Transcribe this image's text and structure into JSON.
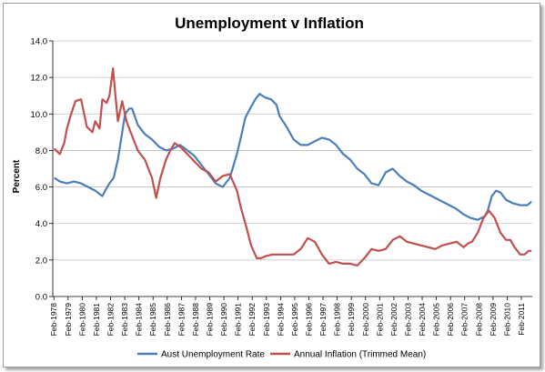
{
  "chart_data": {
    "type": "line",
    "title": "Unemployment v Inflation",
    "xlabel": "",
    "ylabel": "Percent",
    "ylim": [
      0,
      14
    ],
    "yticks": [
      "0.0",
      "2.0",
      "4.0",
      "6.0",
      "8.0",
      "10.0",
      "12.0",
      "14.0"
    ],
    "xlim": [
      1978.0,
      2011.85
    ],
    "x_tick_labels": [
      "Feb-1978",
      "Feb-1979",
      "Feb-1980",
      "Feb-1981",
      "Feb-1982",
      "Feb-1983",
      "Feb-1984",
      "Feb-1985",
      "Feb-1986",
      "Feb-1987",
      "Feb-1988",
      "Feb-1989",
      "Feb-1990",
      "Feb-1991",
      "Feb-1992",
      "Feb-1993",
      "Feb-1994",
      "Feb-1995",
      "Feb-1996",
      "Feb-1997",
      "Feb-1998",
      "Feb-1999",
      "Feb-2000",
      "Feb-2001",
      "Feb-2002",
      "Feb-2003",
      "Feb-2004",
      "Feb-2005",
      "Feb-2006",
      "Feb-2007",
      "Feb-2008",
      "Feb-2009",
      "Feb-2010",
      "Feb-2011"
    ],
    "grid": true,
    "legend": "bottom",
    "series": [
      {
        "name": "Aust Unemployment Rate",
        "color": "#4a7ebb",
        "x": [
          1978.1,
          1978.5,
          1979.0,
          1979.5,
          1980.0,
          1980.5,
          1981.0,
          1981.5,
          1981.7,
          1982.0,
          1982.3,
          1982.6,
          1982.9,
          1983.1,
          1983.4,
          1983.6,
          1984.0,
          1984.5,
          1985.0,
          1985.5,
          1986.0,
          1986.5,
          1987.0,
          1987.5,
          1988.0,
          1988.5,
          1989.0,
          1989.5,
          1990.0,
          1990.5,
          1991.0,
          1991.3,
          1991.6,
          1992.0,
          1992.3,
          1992.6,
          1993.0,
          1993.4,
          1993.8,
          1994.0,
          1994.5,
          1995.0,
          1995.5,
          1996.0,
          1996.5,
          1997.0,
          1997.5,
          1998.0,
          1998.5,
          1999.0,
          1999.5,
          2000.0,
          2000.5,
          2001.0,
          2001.5,
          2002.0,
          2002.5,
          2003.0,
          2003.5,
          2004.0,
          2004.5,
          2005.0,
          2005.5,
          2006.0,
          2006.5,
          2007.0,
          2007.5,
          2008.0,
          2008.5,
          2008.7,
          2009.0,
          2009.3,
          2009.6,
          2010.0,
          2010.5,
          2011.0,
          2011.5,
          2011.8
        ],
        "values": [
          6.5,
          6.3,
          6.2,
          6.3,
          6.2,
          6.0,
          5.8,
          5.5,
          5.8,
          6.2,
          6.5,
          7.5,
          9.0,
          10.0,
          10.3,
          10.3,
          9.4,
          8.9,
          8.6,
          8.2,
          8.0,
          8.1,
          8.3,
          8.0,
          7.7,
          7.2,
          6.7,
          6.2,
          6.0,
          6.5,
          7.8,
          8.8,
          9.8,
          10.4,
          10.8,
          11.1,
          10.9,
          10.8,
          10.5,
          9.9,
          9.3,
          8.6,
          8.3,
          8.3,
          8.5,
          8.7,
          8.6,
          8.3,
          7.8,
          7.5,
          7.0,
          6.7,
          6.2,
          6.1,
          6.8,
          7.0,
          6.6,
          6.3,
          6.1,
          5.8,
          5.6,
          5.4,
          5.2,
          5.0,
          4.8,
          4.5,
          4.3,
          4.2,
          4.4,
          4.7,
          5.5,
          5.8,
          5.7,
          5.3,
          5.1,
          5.0,
          5.0,
          5.2
        ]
      },
      {
        "name": "Annual Inflation (Trimmed Mean)",
        "color": "#c0504d",
        "x": [
          1978.1,
          1978.5,
          1978.8,
          1979.0,
          1979.3,
          1979.6,
          1980.0,
          1980.4,
          1980.8,
          1981.0,
          1981.3,
          1981.5,
          1981.8,
          1982.0,
          1982.25,
          1982.4,
          1982.6,
          1982.9,
          1983.2,
          1983.5,
          1984.0,
          1984.5,
          1985.0,
          1985.3,
          1985.6,
          1986.0,
          1986.3,
          1986.6,
          1987.0,
          1987.5,
          1988.0,
          1988.5,
          1989.0,
          1989.5,
          1990.0,
          1990.5,
          1991.0,
          1991.3,
          1991.6,
          1992.0,
          1992.4,
          1992.7,
          1993.0,
          1993.5,
          1994.0,
          1994.5,
          1995.0,
          1995.5,
          1996.0,
          1996.5,
          1997.0,
          1997.5,
          1998.0,
          1998.5,
          1999.0,
          1999.5,
          2000.0,
          2000.5,
          2001.0,
          2001.5,
          2002.0,
          2002.5,
          2003.0,
          2003.5,
          2004.0,
          2004.5,
          2005.0,
          2005.5,
          2006.0,
          2006.5,
          2007.0,
          2007.3,
          2007.6,
          2008.0,
          2008.4,
          2008.8,
          2009.2,
          2009.6,
          2010.0,
          2010.3,
          2010.6,
          2011.0,
          2011.3,
          2011.6,
          2011.8
        ],
        "values": [
          8.1,
          7.8,
          8.4,
          9.2,
          10.0,
          10.7,
          10.8,
          9.3,
          9.0,
          9.6,
          9.2,
          10.8,
          10.6,
          11.0,
          12.5,
          11.2,
          9.6,
          10.7,
          9.6,
          9.0,
          8.0,
          7.5,
          6.5,
          5.4,
          6.5,
          7.5,
          8.0,
          8.4,
          8.2,
          7.8,
          7.4,
          7.0,
          6.8,
          6.3,
          6.6,
          6.7,
          5.8,
          4.8,
          4.0,
          2.8,
          2.1,
          2.1,
          2.2,
          2.3,
          2.3,
          2.3,
          2.3,
          2.6,
          3.2,
          3.0,
          2.3,
          1.8,
          1.9,
          1.8,
          1.8,
          1.7,
          2.1,
          2.6,
          2.5,
          2.6,
          3.1,
          3.3,
          3.0,
          2.9,
          2.8,
          2.7,
          2.6,
          2.8,
          2.9,
          3.0,
          2.7,
          2.9,
          3.0,
          3.5,
          4.3,
          4.7,
          4.3,
          3.5,
          3.1,
          3.1,
          2.7,
          2.3,
          2.3,
          2.5,
          2.5
        ]
      }
    ]
  }
}
